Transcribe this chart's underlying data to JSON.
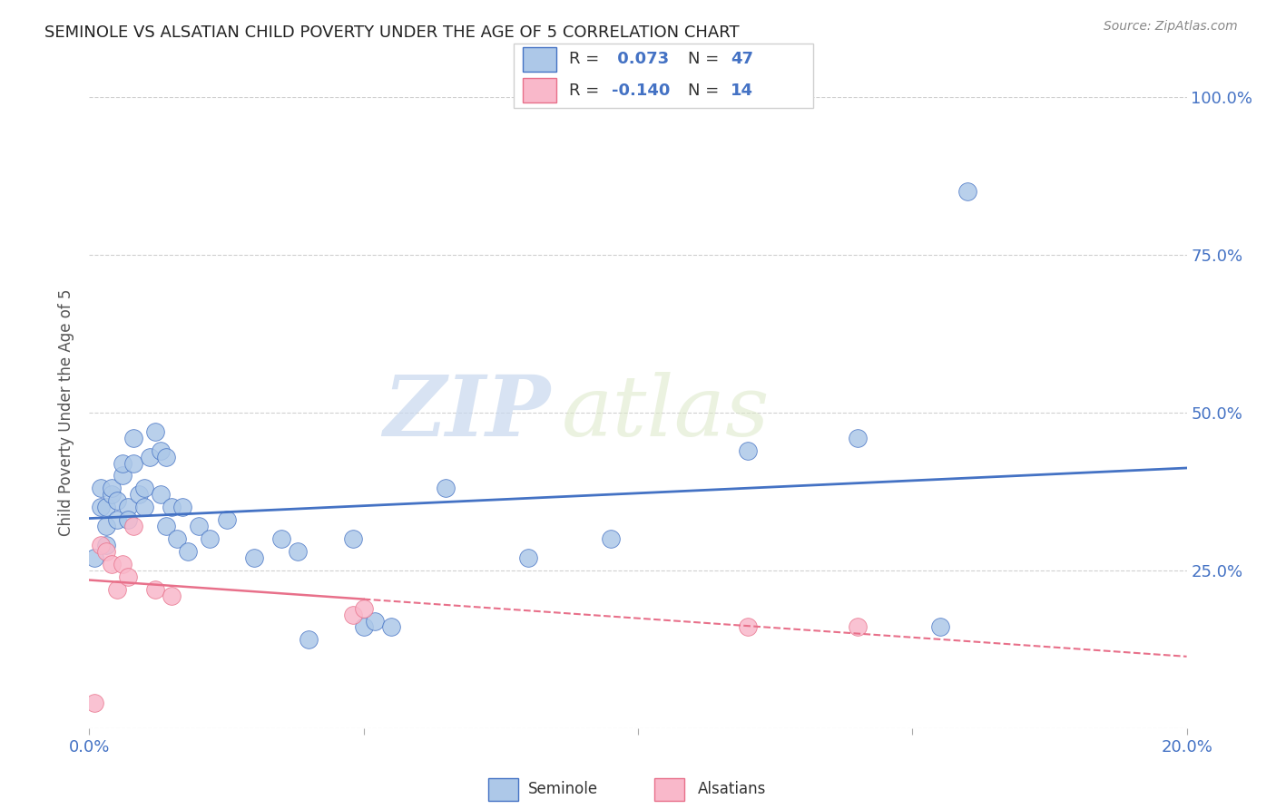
{
  "title": "SEMINOLE VS ALSATIAN CHILD POVERTY UNDER THE AGE OF 5 CORRELATION CHART",
  "source": "Source: ZipAtlas.com",
  "ylabel": "Child Poverty Under the Age of 5",
  "xlim": [
    0,
    0.2
  ],
  "ylim": [
    0,
    1.0
  ],
  "xticks": [
    0.0,
    0.05,
    0.1,
    0.15,
    0.2
  ],
  "yticks": [
    0.0,
    0.25,
    0.5,
    0.75,
    1.0
  ],
  "xtick_labels": [
    "0.0%",
    "",
    "",
    "",
    "20.0%"
  ],
  "ytick_labels": [
    "",
    "25.0%",
    "50.0%",
    "75.0%",
    "100.0%"
  ],
  "seminole_R": 0.073,
  "seminole_N": 47,
  "alsatian_R": -0.14,
  "alsatian_N": 14,
  "seminole_color": "#adc8e8",
  "alsatian_color": "#f9b8ca",
  "trend_seminole_color": "#4472c4",
  "trend_alsatian_color": "#e8708a",
  "watermark_zip": "ZIP",
  "watermark_atlas": "atlas",
  "seminole_x": [
    0.001,
    0.002,
    0.002,
    0.003,
    0.003,
    0.003,
    0.004,
    0.004,
    0.005,
    0.005,
    0.006,
    0.006,
    0.007,
    0.007,
    0.008,
    0.008,
    0.009,
    0.01,
    0.01,
    0.011,
    0.012,
    0.013,
    0.013,
    0.014,
    0.014,
    0.015,
    0.016,
    0.017,
    0.018,
    0.02,
    0.022,
    0.025,
    0.03,
    0.035,
    0.038,
    0.04,
    0.048,
    0.05,
    0.052,
    0.055,
    0.065,
    0.08,
    0.095,
    0.12,
    0.14,
    0.155,
    0.16
  ],
  "seminole_y": [
    0.27,
    0.35,
    0.38,
    0.32,
    0.29,
    0.35,
    0.37,
    0.38,
    0.33,
    0.36,
    0.4,
    0.42,
    0.35,
    0.33,
    0.42,
    0.46,
    0.37,
    0.35,
    0.38,
    0.43,
    0.47,
    0.44,
    0.37,
    0.32,
    0.43,
    0.35,
    0.3,
    0.35,
    0.28,
    0.32,
    0.3,
    0.33,
    0.27,
    0.3,
    0.28,
    0.14,
    0.3,
    0.16,
    0.17,
    0.16,
    0.38,
    0.27,
    0.3,
    0.44,
    0.46,
    0.16,
    0.85
  ],
  "alsatian_x": [
    0.001,
    0.002,
    0.003,
    0.004,
    0.005,
    0.006,
    0.007,
    0.008,
    0.012,
    0.015,
    0.048,
    0.05,
    0.12,
    0.14
  ],
  "alsatian_y": [
    0.04,
    0.29,
    0.28,
    0.26,
    0.22,
    0.26,
    0.24,
    0.32,
    0.22,
    0.21,
    0.18,
    0.19,
    0.16,
    0.16
  ],
  "background_color": "#ffffff",
  "grid_color": "#d0d0d0"
}
